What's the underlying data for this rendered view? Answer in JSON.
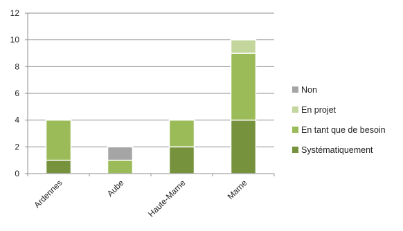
{
  "chart_data": {
    "type": "bar",
    "stacked": true,
    "categories": [
      "Ardennes",
      "Aube",
      "Haute-Marne",
      "Marne"
    ],
    "series": [
      {
        "name": "Systématiquement",
        "values": [
          1,
          0,
          2,
          4
        ],
        "color": "#76923c"
      },
      {
        "name": "En tant que de besoin",
        "values": [
          3,
          1,
          2,
          5
        ],
        "color": "#9bbb59"
      },
      {
        "name": "En projet",
        "values": [
          0,
          0,
          0,
          1
        ],
        "color": "#c3d69b"
      },
      {
        "name": "Non",
        "values": [
          0,
          1,
          0,
          0
        ],
        "color": "#a5a5a5"
      }
    ],
    "ylim": [
      0,
      12
    ],
    "yticks": [
      "0",
      "2",
      "4",
      "6",
      "8",
      "10",
      "12"
    ],
    "grid": true,
    "legend_position": "right",
    "title": "",
    "xlabel": "",
    "ylabel": ""
  },
  "legend_order": [
    "Non",
    "En projet",
    "En tant que de besoin",
    "Systématiquement"
  ],
  "colors": {
    "gridline": "#8c8c8c",
    "axis": "#8c8c8c",
    "bar_outline": "#ffffff"
  }
}
